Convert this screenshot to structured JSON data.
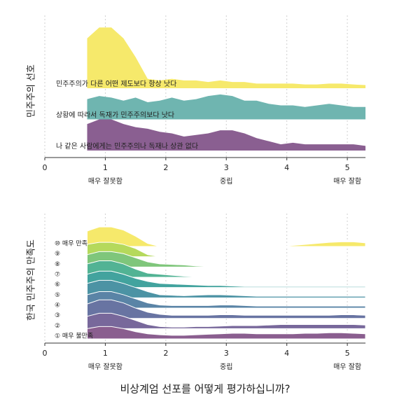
{
  "chart_data": [
    {
      "type": "ridgeline",
      "y_label": "민주주의 선호",
      "x": [
        0.7,
        0.9,
        1.1,
        1.3,
        1.5,
        1.7,
        1.9,
        2.1,
        2.3,
        2.5,
        2.7,
        2.9,
        3.1,
        3.3,
        3.5,
        3.7,
        3.9,
        4.1,
        4.3,
        4.5,
        4.7,
        4.9,
        5.1,
        5.3
      ],
      "xlim": [
        0,
        5.3
      ],
      "xticks": [
        0,
        1,
        2,
        3,
        4,
        5
      ],
      "grid": true,
      "x_category_labels": [
        {
          "value": 1,
          "label": "매우 잘못함"
        },
        {
          "value": 3,
          "label": "중립"
        },
        {
          "value": 5,
          "label": "매우 잘함"
        }
      ],
      "series": [
        {
          "name": "민주주의가 다른 어떤 제도보다 항상 낫다",
          "color": "#f6e96b",
          "values": [
            1.6,
            1.95,
            1.95,
            1.6,
            1.0,
            0.3,
            0.25,
            0.3,
            0.25,
            0.25,
            0.2,
            0.25,
            0.2,
            0.2,
            0.15,
            0.15,
            0.15,
            0.15,
            0.12,
            0.12,
            0.15,
            0.15,
            0.12,
            0.1
          ]
        },
        {
          "name": "상황에 따라서 독재가 민주주의보다 낫다",
          "color": "#6fb5b0",
          "values": [
            0.65,
            0.75,
            0.7,
            0.6,
            0.7,
            0.55,
            0.6,
            0.7,
            0.6,
            0.65,
            0.75,
            0.8,
            0.75,
            0.6,
            0.6,
            0.5,
            0.45,
            0.45,
            0.4,
            0.45,
            0.5,
            0.45,
            0.4,
            0.4
          ]
        },
        {
          "name": "나 같은 사람에게는 민주주의나 독재나 상관 없다",
          "color": "#8a5f91",
          "values": [
            0.85,
            1.0,
            1.0,
            0.85,
            0.75,
            0.7,
            0.6,
            0.55,
            0.45,
            0.5,
            0.55,
            0.65,
            0.65,
            0.55,
            0.4,
            0.3,
            0.2,
            0.25,
            0.2,
            0.2,
            0.2,
            0.2,
            0.2,
            0.15
          ]
        }
      ]
    },
    {
      "type": "ridgeline",
      "y_label": "한국 민주주의 만족도",
      "x_label": "비상계엄 선포를 어떻게 평가하십니까?",
      "x": [
        0.7,
        0.9,
        1.1,
        1.3,
        1.5,
        1.7,
        1.9,
        2.1,
        2.3,
        2.5,
        2.7,
        2.9,
        3.1,
        3.3,
        3.5,
        3.7,
        3.9,
        4.1,
        4.3,
        4.5,
        4.7,
        4.9,
        5.1,
        5.3
      ],
      "xlim": [
        0,
        5.3
      ],
      "xticks": [
        0,
        1,
        2,
        3,
        4,
        5
      ],
      "grid": true,
      "x_category_labels": [
        {
          "value": 1,
          "label": "매우 잘못함"
        },
        {
          "value": 3,
          "label": "중립"
        },
        {
          "value": 5,
          "label": "매우 잘함"
        }
      ],
      "series": [
        {
          "name": "⑩ 매우 만족",
          "color": "#f6e96b",
          "values": [
            1.5,
            1.9,
            1.9,
            1.6,
            1.0,
            0.3,
            0,
            0,
            0,
            0,
            0.03,
            0.05,
            0.05,
            0.03,
            0,
            0,
            0,
            0.1,
            0.2,
            0.3,
            0.4,
            0.45,
            0.45,
            0.35
          ]
        },
        {
          "name": "⑨",
          "color": "#b5d95c",
          "values": [
            1.2,
            1.4,
            1.4,
            1.2,
            0.8,
            0.2,
            0,
            0,
            0,
            0,
            0,
            0,
            0,
            0,
            0,
            0,
            0,
            0,
            0,
            0,
            0,
            0,
            0,
            0
          ]
        },
        {
          "name": "⑧",
          "color": "#7fc67b",
          "values": [
            1.2,
            1.5,
            1.5,
            1.3,
            0.9,
            0.5,
            0.3,
            0.25,
            0.2,
            0.1,
            0.05,
            0,
            0,
            0,
            0,
            0,
            0,
            0,
            0,
            0,
            0,
            0,
            0,
            0
          ]
        },
        {
          "name": "⑦",
          "color": "#52b394",
          "values": [
            1.3,
            1.6,
            1.6,
            1.3,
            0.8,
            0.4,
            0.3,
            0.2,
            0.1,
            0.05,
            0,
            0,
            0,
            0,
            0,
            0,
            0,
            0,
            0,
            0,
            0,
            0,
            0,
            0
          ]
        },
        {
          "name": "⑥",
          "color": "#42a39e",
          "values": [
            1.3,
            1.6,
            1.6,
            1.3,
            0.9,
            0.6,
            0.4,
            0.35,
            0.3,
            0.25,
            0.2,
            0.2,
            0.15,
            0.1,
            0.1,
            0.1,
            0.1,
            0.1,
            0.1,
            0.1,
            0.1,
            0.1,
            0.1,
            0.1
          ]
        },
        {
          "name": "⑤",
          "color": "#4c93a4",
          "values": [
            1.4,
            1.7,
            1.7,
            1.4,
            1.0,
            0.6,
            0.3,
            0.25,
            0.2,
            0.25,
            0.3,
            0.3,
            0.25,
            0.2,
            0.15,
            0.15,
            0.15,
            0.15,
            0.15,
            0.15,
            0.15,
            0.15,
            0.15,
            0.15
          ]
        },
        {
          "name": "④",
          "color": "#5a84a6",
          "values": [
            1.3,
            1.6,
            1.6,
            1.3,
            0.9,
            0.5,
            0.3,
            0.25,
            0.25,
            0.25,
            0.25,
            0.3,
            0.3,
            0.25,
            0.2,
            0.2,
            0.2,
            0.2,
            0.2,
            0.2,
            0.2,
            0.2,
            0.2,
            0.2
          ]
        },
        {
          "name": "③",
          "color": "#6874a2",
          "values": [
            1.4,
            1.8,
            1.8,
            1.5,
            1.0,
            0.6,
            0.4,
            0.3,
            0.3,
            0.3,
            0.3,
            0.35,
            0.35,
            0.3,
            0.3,
            0.3,
            0.3,
            0.3,
            0.3,
            0.3,
            0.3,
            0.35,
            0.35,
            0.3
          ]
        },
        {
          "name": "②",
          "color": "#78689b",
          "values": [
            1.2,
            1.5,
            1.5,
            1.2,
            0.8,
            0.4,
            0.2,
            0.15,
            0.15,
            0.2,
            0.2,
            0.25,
            0.3,
            0.3,
            0.3,
            0.35,
            0.4,
            0.4,
            0.4,
            0.4,
            0.4,
            0.4,
            0.4,
            0.35
          ]
        },
        {
          "name": "① 매우 불만족",
          "color": "#8a5e8f",
          "values": [
            1.0,
            1.2,
            1.2,
            1.0,
            0.7,
            0.5,
            0.4,
            0.35,
            0.35,
            0.4,
            0.45,
            0.5,
            0.55,
            0.55,
            0.5,
            0.5,
            0.5,
            0.5,
            0.55,
            0.55,
            0.6,
            0.6,
            0.55,
            0.5
          ]
        }
      ]
    }
  ]
}
